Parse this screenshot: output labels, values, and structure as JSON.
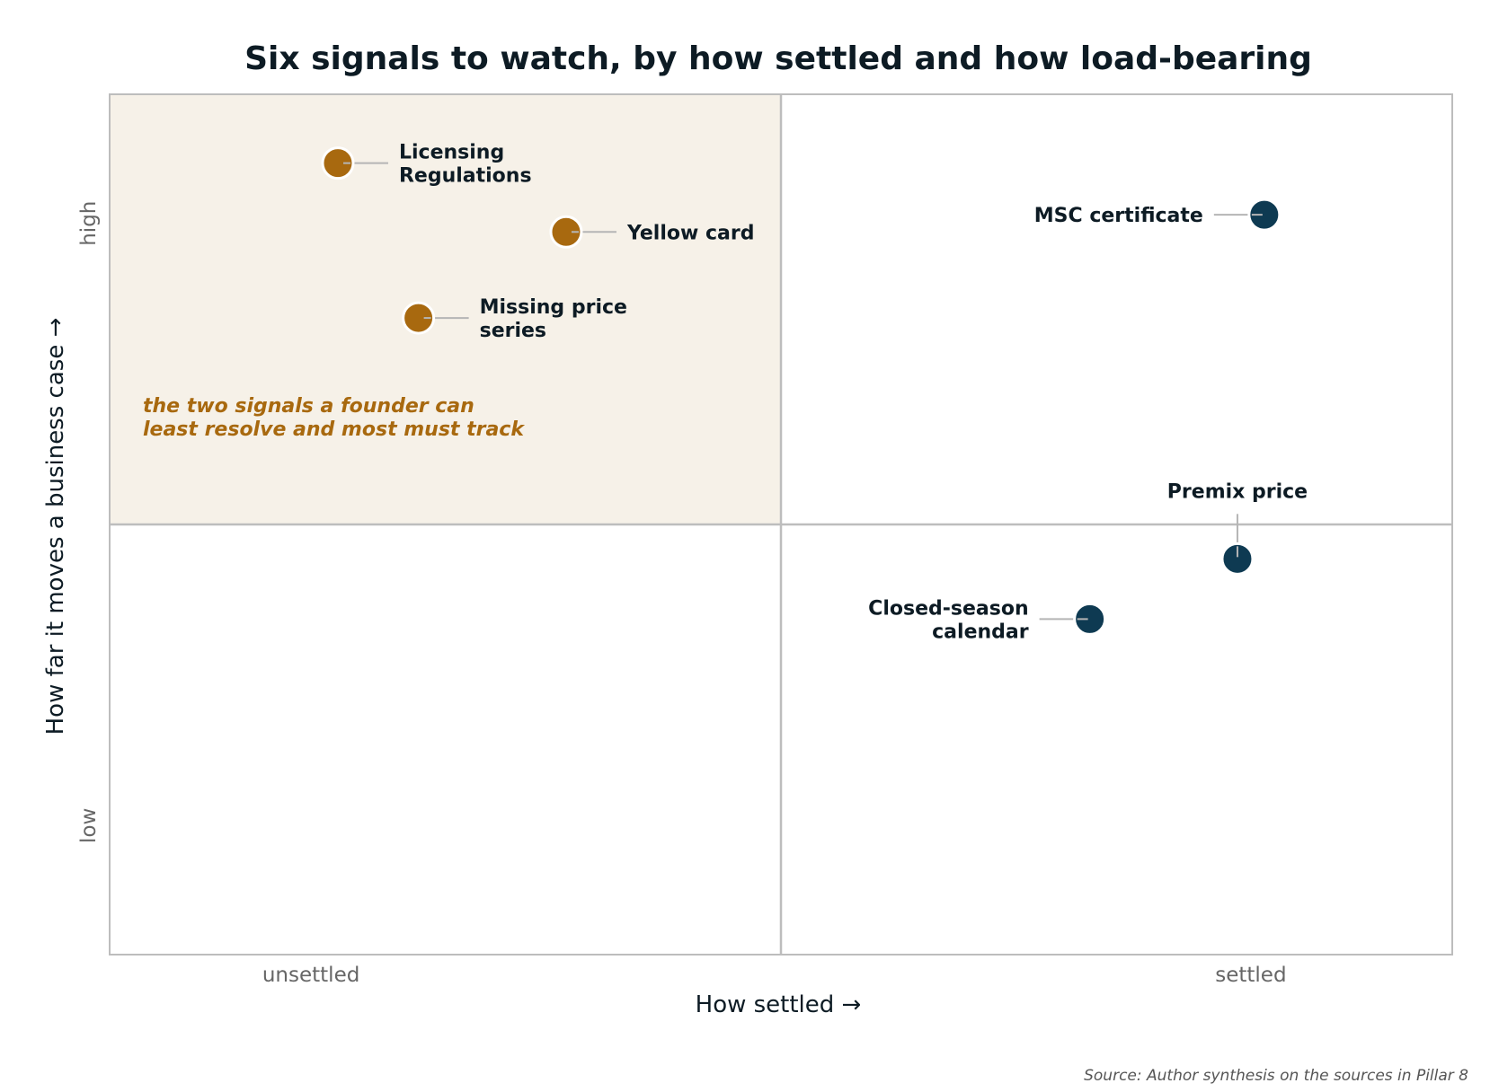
{
  "chart_data": {
    "type": "scatter",
    "title": "Six signals to watch, by how settled and how load-bearing",
    "xlabel": "How settled  →",
    "ylabel": "How far it moves a business case  →",
    "xlim": [
      0,
      1
    ],
    "ylim": [
      0,
      1
    ],
    "x_ticks": [
      {
        "value": 0.15,
        "label": "unsettled"
      },
      {
        "value": 0.85,
        "label": "settled"
      }
    ],
    "y_ticks": [
      {
        "value": 0.85,
        "label": "high"
      },
      {
        "value": 0.15,
        "label": "low"
      }
    ],
    "quadrant_split": {
      "x": 0.5,
      "y": 0.5
    },
    "highlight_quadrant": "top-left",
    "points": [
      {
        "label": "Licensing Regulations",
        "lines": [
          "Licensing",
          "Regulations"
        ],
        "x": 0.17,
        "y": 0.92,
        "group": "unsettled",
        "label_side": "right"
      },
      {
        "label": "Yellow card",
        "lines": [
          "Yellow card"
        ],
        "x": 0.34,
        "y": 0.84,
        "group": "unsettled",
        "label_side": "right"
      },
      {
        "label": "Missing price series",
        "lines": [
          "Missing price",
          "series"
        ],
        "x": 0.23,
        "y": 0.74,
        "group": "unsettled",
        "label_side": "right"
      },
      {
        "label": "MSC certificate",
        "lines": [
          "MSC certificate"
        ],
        "x": 0.86,
        "y": 0.86,
        "group": "settled",
        "label_side": "left"
      },
      {
        "label": "Premix price",
        "lines": [
          "Premix price"
        ],
        "x": 0.84,
        "y": 0.46,
        "group": "settled",
        "label_side": "top"
      },
      {
        "label": "Closed-season calendar",
        "lines": [
          "Closed-season",
          "calendar"
        ],
        "x": 0.73,
        "y": 0.39,
        "group": "settled",
        "label_side": "left"
      }
    ],
    "annotation": {
      "lines": [
        "the two signals a founder can",
        "least resolve and most must track"
      ]
    },
    "colors": {
      "unsettled": "#a8690f",
      "settled": "#0e3a52",
      "highlight_fill": "#f6f1e8",
      "frame": "#bdbdbd",
      "leader": "#b5b5b5"
    },
    "source": "Source: Author synthesis on the sources in Pillar 8"
  }
}
